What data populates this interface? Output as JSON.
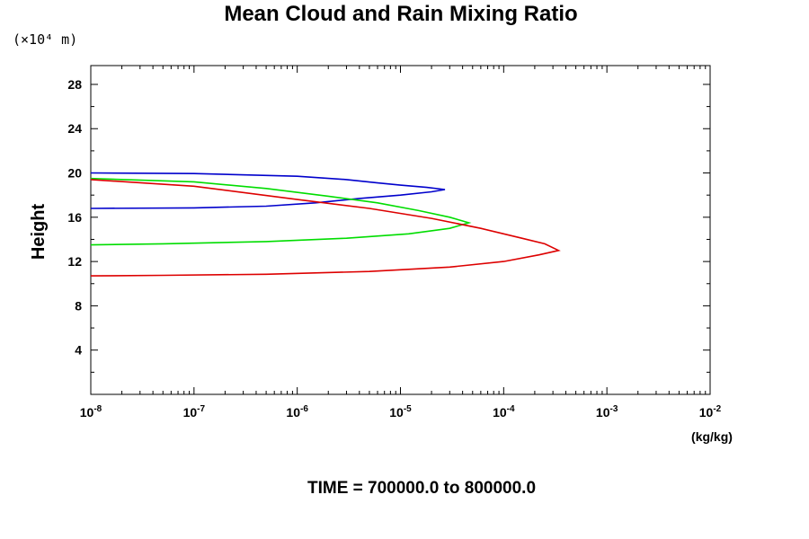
{
  "chart_data": {
    "type": "line",
    "title": "Mean Cloud and Rain Mixing Ratio",
    "y_unit_label": "(×10⁴ m)",
    "ylabel": "Height",
    "xlabel": "(kg/kg)",
    "footer": "TIME = 700000.0 to 800000.0",
    "x_scale": "log",
    "xlim": [
      1e-08,
      0.01
    ],
    "ylim": [
      0,
      29.7
    ],
    "x_ticks": [
      {
        "value": 1e-08,
        "base": "10",
        "exp": "-8"
      },
      {
        "value": 1e-07,
        "base": "10",
        "exp": "-7"
      },
      {
        "value": 1e-06,
        "base": "10",
        "exp": "-6"
      },
      {
        "value": 1e-05,
        "base": "10",
        "exp": "-5"
      },
      {
        "value": 0.0001,
        "base": "10",
        "exp": "-4"
      },
      {
        "value": 0.001,
        "base": "10",
        "exp": "-3"
      },
      {
        "value": 0.01,
        "base": "10",
        "exp": "-2"
      }
    ],
    "y_ticks": [
      4,
      8,
      12,
      16,
      20,
      24,
      28
    ],
    "grid": false,
    "series": [
      {
        "color": "#0000cc",
        "points": [
          [
            1e-08,
            20.0
          ],
          [
            1e-07,
            19.95
          ],
          [
            1e-06,
            19.7
          ],
          [
            3e-06,
            19.4
          ],
          [
            6e-06,
            19.1
          ],
          [
            1e-05,
            18.9
          ],
          [
            1.8e-05,
            18.7
          ],
          [
            2.7e-05,
            18.5
          ],
          [
            2e-05,
            18.3
          ],
          [
            1e-05,
            18.0
          ],
          [
            4e-06,
            17.7
          ],
          [
            1.5e-06,
            17.3
          ],
          [
            5e-07,
            17.0
          ],
          [
            1e-07,
            16.85
          ],
          [
            1e-08,
            16.8
          ]
        ]
      },
      {
        "color": "#00dd00",
        "points": [
          [
            1e-08,
            19.5
          ],
          [
            1e-07,
            19.2
          ],
          [
            5e-07,
            18.6
          ],
          [
            2e-06,
            17.9
          ],
          [
            6e-06,
            17.3
          ],
          [
            1.5e-05,
            16.6
          ],
          [
            3e-05,
            16.0
          ],
          [
            4.6e-05,
            15.5
          ],
          [
            3e-05,
            15.0
          ],
          [
            1.2e-05,
            14.5
          ],
          [
            3e-06,
            14.1
          ],
          [
            5e-07,
            13.8
          ],
          [
            5e-08,
            13.6
          ],
          [
            1e-08,
            13.5
          ]
        ]
      },
      {
        "color": "#dd0000",
        "points": [
          [
            1e-08,
            19.4
          ],
          [
            1e-07,
            18.8
          ],
          [
            1e-06,
            17.6
          ],
          [
            5e-06,
            16.8
          ],
          [
            2e-05,
            15.9
          ],
          [
            6e-05,
            15.0
          ],
          [
            0.00015,
            14.1
          ],
          [
            0.00025,
            13.6
          ],
          [
            0.00034,
            13.0
          ],
          [
            0.00022,
            12.6
          ],
          [
            0.0001,
            12.0
          ],
          [
            3e-05,
            11.5
          ],
          [
            5e-06,
            11.1
          ],
          [
            5e-07,
            10.85
          ],
          [
            5e-08,
            10.75
          ],
          [
            1e-08,
            10.7
          ]
        ]
      }
    ]
  }
}
